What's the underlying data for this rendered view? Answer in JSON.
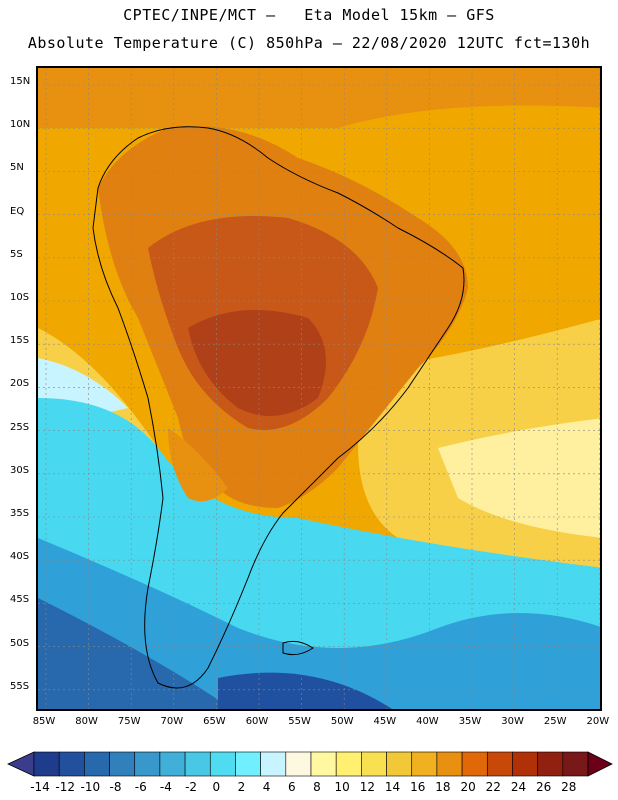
{
  "header": {
    "line1": "CPTEC/INPE/MCT –   Eta Model 15km – GFS",
    "line2": "Absolute Temperature (C) 850hPa – 22/08/2020 12UTC fct=130h"
  },
  "map": {
    "lat_labels": [
      "15N",
      "10N",
      "5N",
      "EQ",
      "5S",
      "10S",
      "15S",
      "20S",
      "25S",
      "30S",
      "35S",
      "40S",
      "45S",
      "50S",
      "55S"
    ],
    "lon_labels": [
      "85W",
      "80W",
      "75W",
      "70W",
      "65W",
      "60W",
      "55W",
      "50W",
      "45W",
      "40W",
      "35W",
      "30W",
      "25W",
      "20W"
    ],
    "colors": {
      "ocean_tropical": "#f0a800",
      "warm": "#e08010",
      "hot": "#c85818",
      "very_hot": "#b04018",
      "mild": "#f8d048",
      "cool_yellow": "#fff0a0",
      "cold_cyan": "#48d8f0",
      "colder": "#30a0d8",
      "coldest": "#2050a0"
    }
  },
  "colorbar": {
    "labels": [
      "-14",
      "-12",
      "-10",
      "-8",
      "-6",
      "-4",
      "-2",
      "0",
      "2",
      "4",
      "6",
      "8",
      "10",
      "12",
      "14",
      "16",
      "18",
      "20",
      "22",
      "24",
      "26",
      "28"
    ],
    "colors": [
      "#1e3c8c",
      "#22509c",
      "#2868ac",
      "#3080bc",
      "#3898cc",
      "#40b0d8",
      "#48c8e4",
      "#50dcf0",
      "#70f0ff",
      "#c8f4ff",
      "#fff8e0",
      "#fff8a0",
      "#fff070",
      "#f8e050",
      "#f0c838",
      "#f0b020",
      "#e89010",
      "#e06808",
      "#c84808",
      "#b03008",
      "#902010",
      "#781818"
    ],
    "left_arrow_color": "#3c3c8c",
    "right_arrow_color": "#6c0018"
  }
}
